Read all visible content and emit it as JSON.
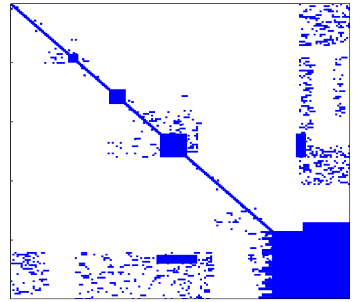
{
  "chart_data": {
    "type": "heatmap",
    "subtype": "sparsity-pattern",
    "title": "",
    "xlabel": "",
    "ylabel": "",
    "n": 100,
    "xlim": [
      0,
      100
    ],
    "ylim": [
      0,
      100
    ],
    "y_direction": "top-down",
    "marker_color": "#0000ff",
    "background_color": "#ffffff",
    "axis_color": "#000000",
    "grid": false,
    "diagonal": [
      0,
      100
    ],
    "dense_blocks": [
      {
        "rows": [
          17,
          20
        ],
        "cols": [
          17,
          20
        ]
      },
      {
        "rows": [
          29,
          34
        ],
        "cols": [
          29,
          34
        ]
      },
      {
        "rows": [
          44,
          52
        ],
        "cols": [
          44,
          52
        ]
      },
      {
        "rows": [
          77,
          100
        ],
        "cols": [
          77,
          100
        ]
      },
      {
        "rows": [
          74,
          100
        ],
        "cols": [
          86,
          100
        ]
      }
    ],
    "sparse_regions": [
      {
        "rows": [
          0,
          14
        ],
        "cols": [
          85,
          100
        ],
        "density": 0.35
      },
      {
        "rows": [
          17,
          48
        ],
        "cols": [
          85,
          88
        ],
        "density": 0.3
      },
      {
        "rows": [
          48,
          52
        ],
        "cols": [
          85,
          100
        ],
        "density": 0.55
      },
      {
        "rows": [
          53,
          61
        ],
        "cols": [
          85,
          100
        ],
        "density": 0.35
      },
      {
        "rows": [
          18,
          38
        ],
        "cols": [
          95,
          98
        ],
        "density": 0.25
      },
      {
        "rows": [
          84,
          98
        ],
        "cols": [
          0,
          10
        ],
        "density": 0.3
      },
      {
        "rows": [
          84,
          100
        ],
        "cols": [
          19,
          48
        ],
        "density": 0.12
      },
      {
        "rows": [
          84,
          100
        ],
        "cols": [
          48,
          60
        ],
        "density": 0.25
      },
      {
        "rows": [
          70,
          77
        ],
        "cols": [
          60,
          72
        ],
        "density": 0.1
      },
      {
        "rows": [
          77,
          95
        ],
        "cols": [
          70,
          77
        ],
        "density": 0.2
      },
      {
        "rows": [
          31,
          47
        ],
        "cols": [
          36,
          52
        ],
        "density": 0.1
      },
      {
        "rows": [
          36,
          50
        ],
        "cols": [
          48,
          55
        ],
        "density": 0.25
      },
      {
        "rows": [
          45,
          52
        ],
        "cols": [
          28,
          46
        ],
        "density": 0.12
      },
      {
        "rows": [
          12,
          20
        ],
        "cols": [
          10,
          22
        ],
        "density": 0.1
      }
    ],
    "dense_strips": [
      {
        "rows": [
          85,
          88
        ],
        "cols": [
          43,
          55
        ]
      },
      {
        "rows": [
          44,
          52
        ],
        "cols": [
          84,
          87
        ]
      }
    ]
  }
}
